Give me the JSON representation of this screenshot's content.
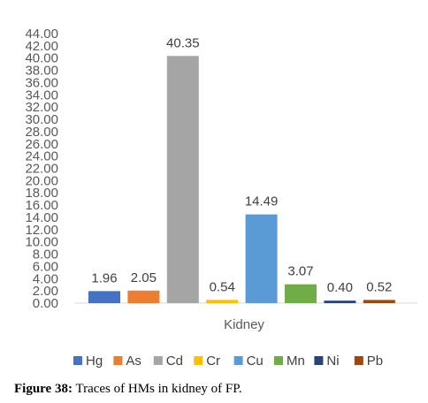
{
  "chart_data": {
    "type": "bar",
    "categories": [
      "Kidney"
    ],
    "series": [
      {
        "name": "Hg",
        "values": [
          1.96
        ],
        "color": "#4472C4"
      },
      {
        "name": "As",
        "values": [
          2.05
        ],
        "color": "#ED7D31"
      },
      {
        "name": "Cd",
        "values": [
          40.35
        ],
        "color": "#A5A5A5"
      },
      {
        "name": "Cr",
        "values": [
          0.54
        ],
        "color": "#FFC000"
      },
      {
        "name": "Cu",
        "values": [
          14.49
        ],
        "color": "#5B9BD5"
      },
      {
        "name": "Mn",
        "values": [
          3.07
        ],
        "color": "#70AD47"
      },
      {
        "name": "Ni",
        "values": [
          0.4
        ],
        "color": "#264478"
      },
      {
        "name": "Pb",
        "values": [
          0.52
        ],
        "color": "#9E480E"
      }
    ],
    "data_labels": [
      "1.96",
      "2.05",
      "40.35",
      "0.54",
      "14.49",
      "3.07",
      "0.40",
      "0.52"
    ],
    "y_ticks": [
      "0.00",
      "2.00",
      "4.00",
      "6.00",
      "8.00",
      "10.00",
      "12.00",
      "14.00",
      "16.00",
      "18.00",
      "20.00",
      "22.00",
      "24.00",
      "26.00",
      "28.00",
      "30.00",
      "32.00",
      "34.00",
      "36.00",
      "38.00",
      "40.00",
      "42.00",
      "44.00"
    ],
    "ylim": [
      0,
      44
    ],
    "grid": false,
    "legend": "bottom",
    "title": "",
    "xlabel": "",
    "ylabel": ""
  },
  "caption": {
    "label": "Figure 38:",
    "text": " Traces of HMs in kidney of FP."
  }
}
